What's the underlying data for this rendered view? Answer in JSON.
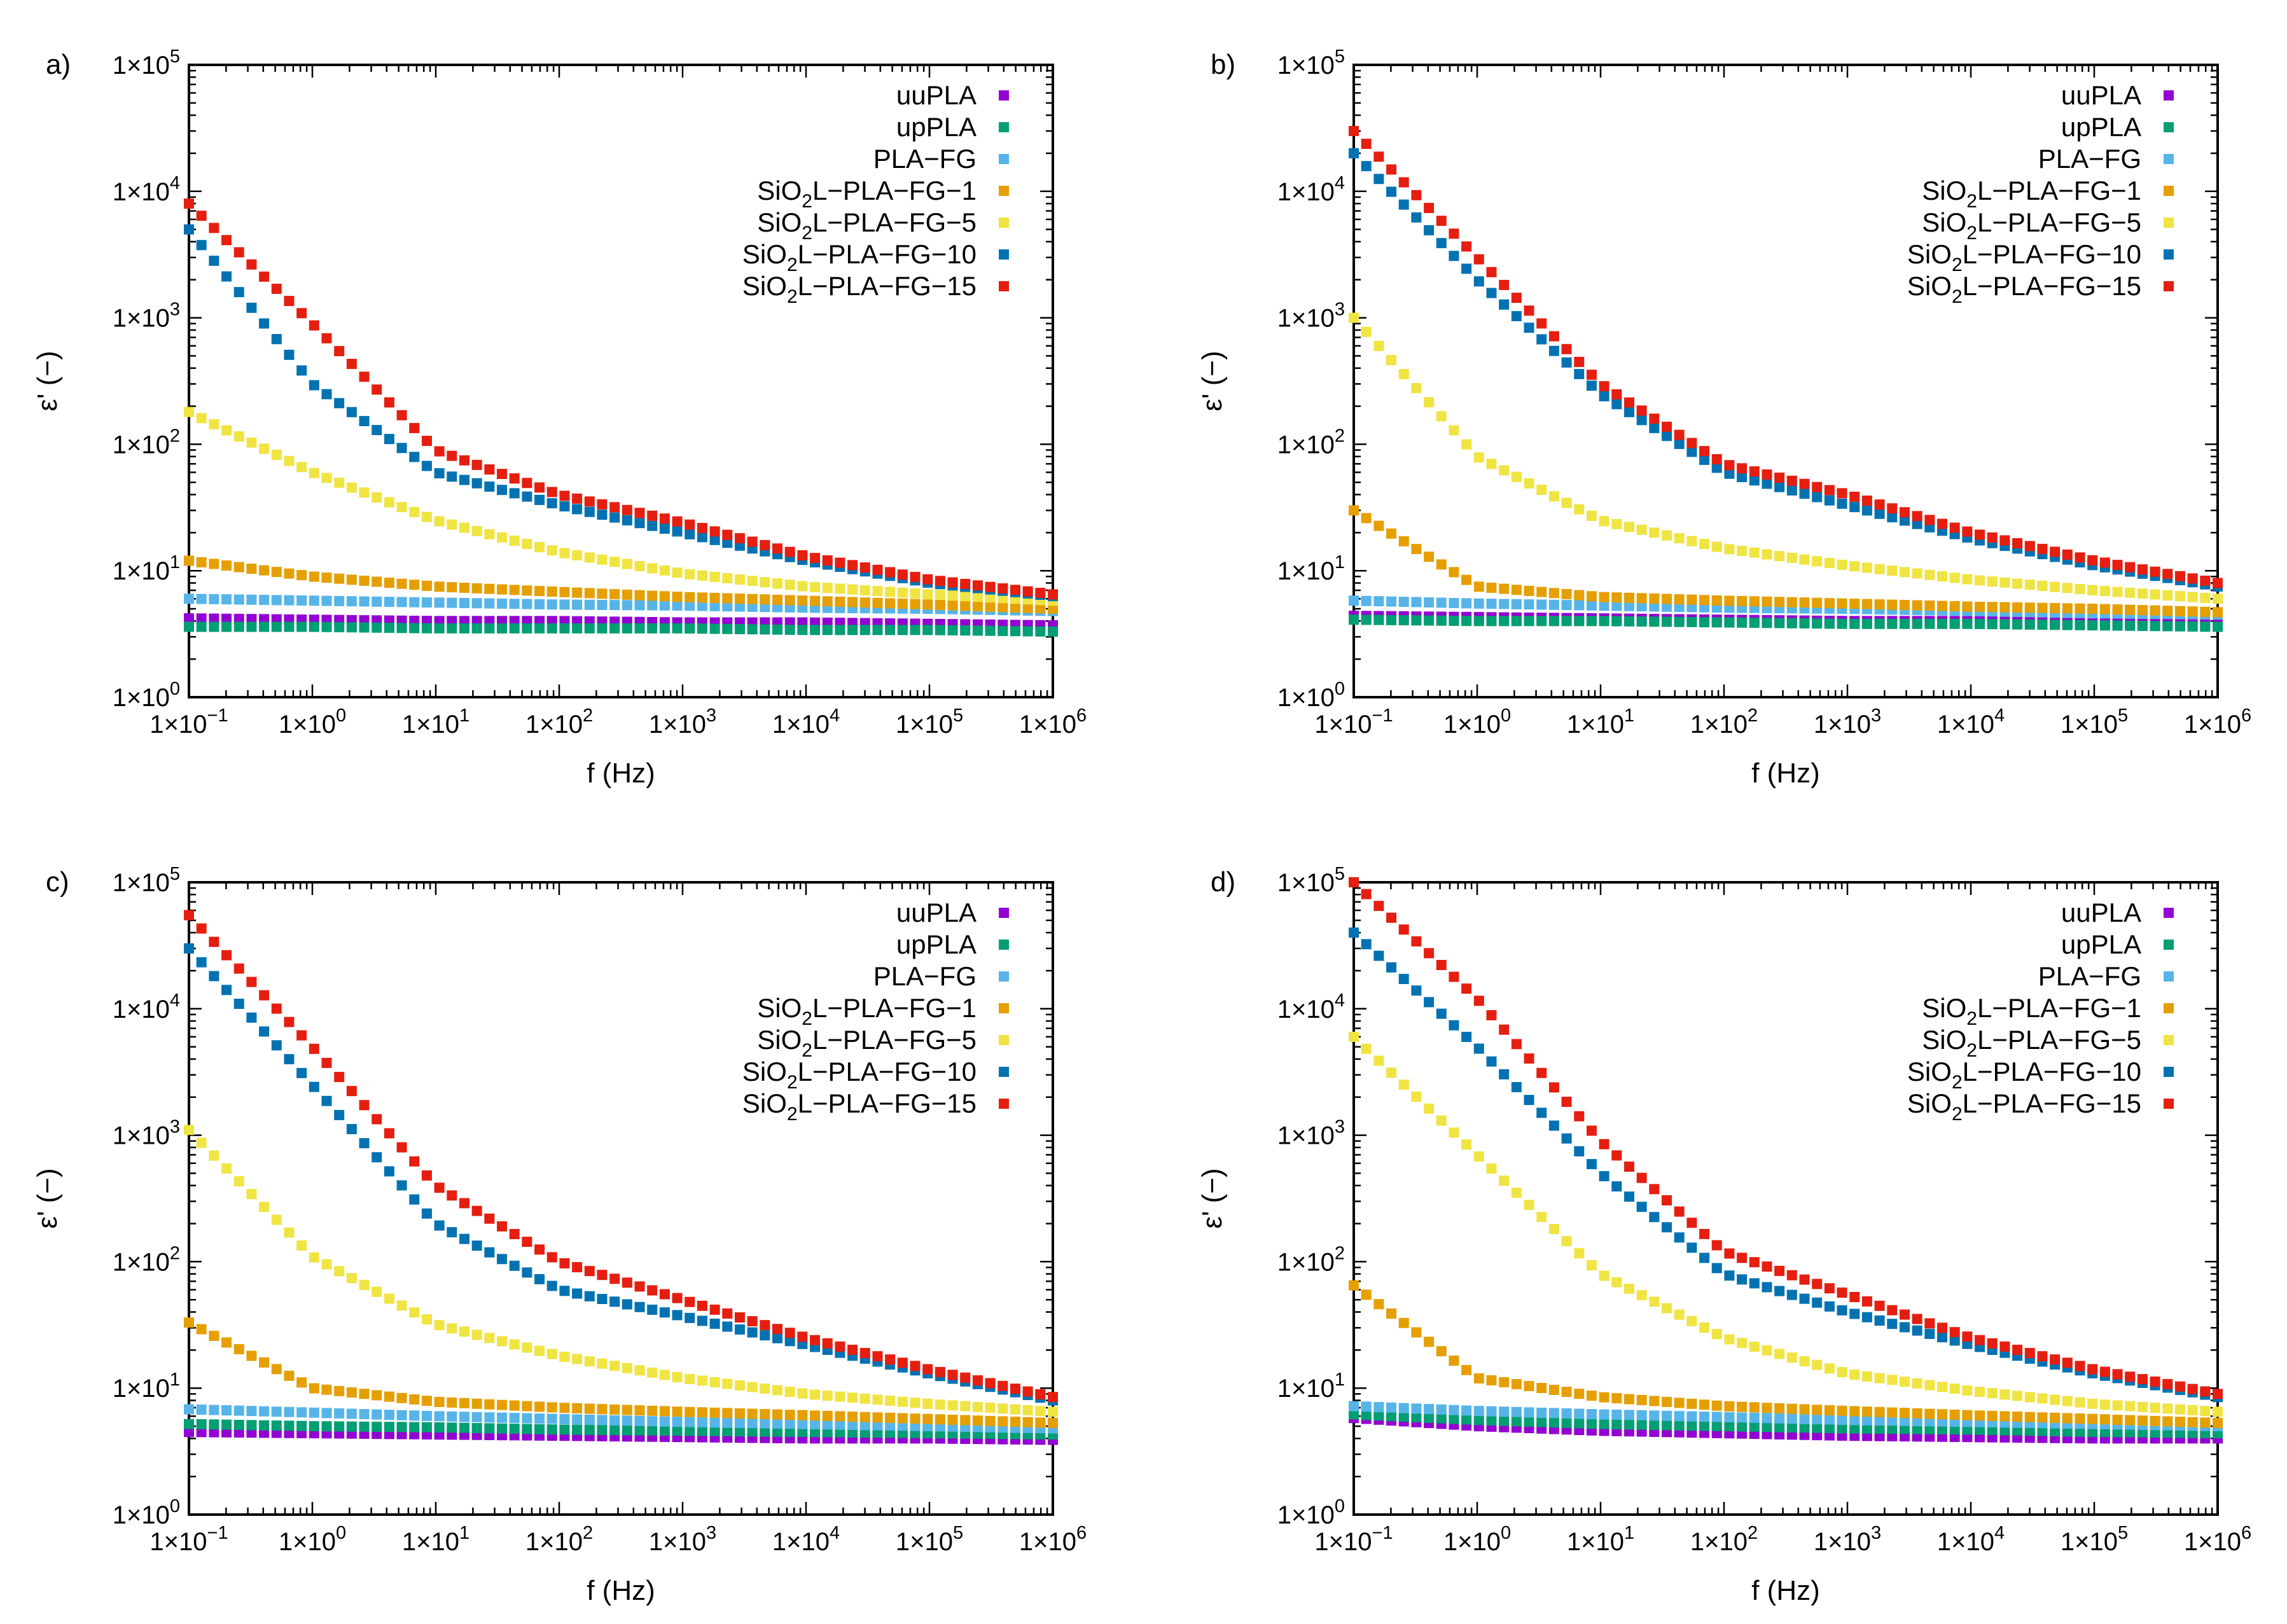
{
  "figure": {
    "panels_layout": "2x2 grid",
    "shared": {
      "xlabel": "f (Hz)",
      "ylabel": "ε' (−)",
      "x_scale": "log",
      "y_scale": "log",
      "xlim": [
        0.1,
        1000000
      ],
      "ylim": [
        1,
        100000
      ],
      "x_ticks": [
        {
          "mant": "1×10",
          "exp": "−1"
        },
        {
          "mant": "1×10",
          "exp": "0"
        },
        {
          "mant": "1×10",
          "exp": "1"
        },
        {
          "mant": "1×10",
          "exp": "2"
        },
        {
          "mant": "1×10",
          "exp": "3"
        },
        {
          "mant": "1×10",
          "exp": "4"
        },
        {
          "mant": "1×10",
          "exp": "5"
        },
        {
          "mant": "1×10",
          "exp": "6"
        }
      ],
      "y_ticks": [
        {
          "mant": "1×10",
          "exp": "0"
        },
        {
          "mant": "1×10",
          "exp": "1"
        },
        {
          "mant": "1×10",
          "exp": "2"
        },
        {
          "mant": "1×10",
          "exp": "3"
        },
        {
          "mant": "1×10",
          "exp": "4"
        },
        {
          "mant": "1×10",
          "exp": "5"
        }
      ],
      "legend_position": "top-right",
      "series_styles": [
        {
          "name": "uuPLA",
          "label": [
            "uuPLA"
          ],
          "color": "#9400d3"
        },
        {
          "name": "upPLA",
          "label": [
            "upPLA"
          ],
          "color": "#009e73"
        },
        {
          "name": "PLA-FG",
          "label": [
            "PLA−FG"
          ],
          "color": "#56b4e9"
        },
        {
          "name": "SiO2L-PLA-FG-1",
          "label": [
            "SiO",
            "2",
            "L−PLA−FG−1"
          ],
          "color": "#e69f00"
        },
        {
          "name": "SiO2L-PLA-FG-5",
          "label": [
            "SiO",
            "2",
            "L−PLA−FG−5"
          ],
          "color": "#f0e442"
        },
        {
          "name": "SiO2L-PLA-FG-10",
          "label": [
            "SiO",
            "2",
            "L−PLA−FG−10"
          ],
          "color": "#0072b2"
        },
        {
          "name": "SiO2L-PLA-FG-15",
          "label": [
            "SiO",
            "2",
            "L−PLA−FG−15"
          ],
          "color": "#e51e10"
        }
      ]
    }
  },
  "chart_data": [
    {
      "panel_label": "a)",
      "type": "scatter",
      "title": "",
      "xlabel": "f (Hz)",
      "ylabel": "ε' (−)",
      "x": [
        0.1,
        1,
        10,
        100,
        1000,
        10000,
        100000,
        1000000
      ],
      "series": [
        {
          "name": "uuPLA",
          "values": [
            4.2,
            4.1,
            4.0,
            4.0,
            3.9,
            3.9,
            3.8,
            3.7
          ]
        },
        {
          "name": "upPLA",
          "values": [
            3.6,
            3.6,
            3.5,
            3.5,
            3.5,
            3.4,
            3.4,
            3.3
          ]
        },
        {
          "name": "PLA-FG",
          "values": [
            6.0,
            5.8,
            5.6,
            5.4,
            5.3,
            5.1,
            5.0,
            4.8
          ]
        },
        {
          "name": "SiO2L-PLA-FG-1",
          "values": [
            12,
            9.0,
            7.5,
            6.8,
            6.2,
            5.8,
            5.4,
            5.0
          ]
        },
        {
          "name": "SiO2L-PLA-FG-5",
          "values": [
            180,
            60,
            25,
            14,
            9.5,
            7.5,
            6.5,
            5.8
          ]
        },
        {
          "name": "SiO2L-PLA-FG-10",
          "values": [
            5000,
            300,
            60,
            33,
            20,
            12,
            8.0,
            6.3
          ]
        },
        {
          "name": "SiO2L-PLA-FG-15",
          "values": [
            8000,
            900,
            90,
            40,
            24,
            13,
            8.5,
            6.5
          ]
        }
      ]
    },
    {
      "panel_label": "b)",
      "type": "scatter",
      "title": "",
      "xlabel": "f (Hz)",
      "ylabel": "ε' (−)",
      "x": [
        0.1,
        1,
        10,
        100,
        1000,
        10000,
        100000,
        1000000
      ],
      "series": [
        {
          "name": "uuPLA",
          "values": [
            4.4,
            4.3,
            4.2,
            4.1,
            4.0,
            4.0,
            3.9,
            3.8
          ]
        },
        {
          "name": "upPLA",
          "values": [
            4.1,
            4.0,
            4.0,
            3.9,
            3.8,
            3.8,
            3.7,
            3.6
          ]
        },
        {
          "name": "PLA-FG",
          "values": [
            5.8,
            5.5,
            5.3,
            5.1,
            5.0,
            4.8,
            4.6,
            4.5
          ]
        },
        {
          "name": "SiO2L-PLA-FG-1",
          "values": [
            30,
            7.5,
            6.2,
            5.8,
            5.5,
            5.2,
            5.0,
            4.7
          ]
        },
        {
          "name": "SiO2L-PLA-FG-5",
          "values": [
            1000,
            80,
            25,
            15,
            11,
            8.5,
            7.0,
            6.0
          ]
        },
        {
          "name": "SiO2L-PLA-FG-10",
          "values": [
            20000,
            2000,
            250,
            60,
            33,
            18,
            11,
            7.5
          ]
        },
        {
          "name": "SiO2L-PLA-FG-15",
          "values": [
            30000,
            3000,
            300,
            70,
            40,
            20,
            12,
            8.0
          ]
        }
      ]
    },
    {
      "panel_label": "c)",
      "type": "scatter",
      "title": "",
      "xlabel": "f (Hz)",
      "ylabel": "ε' (−)",
      "x": [
        0.1,
        1,
        10,
        100,
        1000,
        10000,
        100000,
        1000000
      ],
      "series": [
        {
          "name": "uuPLA",
          "values": [
            4.5,
            4.4,
            4.3,
            4.2,
            4.1,
            4.0,
            4.0,
            3.9
          ]
        },
        {
          "name": "upPLA",
          "values": [
            5.2,
            5.0,
            4.9,
            4.7,
            4.6,
            4.5,
            4.4,
            4.3
          ]
        },
        {
          "name": "PLA-FG",
          "values": [
            6.8,
            6.4,
            6.0,
            5.7,
            5.4,
            5.2,
            5.0,
            4.8
          ]
        },
        {
          "name": "SiO2L-PLA-FG-1",
          "values": [
            33,
            10,
            7.8,
            7.0,
            6.5,
            6.1,
            5.7,
            5.3
          ]
        },
        {
          "name": "SiO2L-PLA-FG-5",
          "values": [
            1100,
            110,
            32,
            18,
            12,
            9.0,
            7.5,
            6.5
          ]
        },
        {
          "name": "SiO2L-PLA-FG-10",
          "values": [
            30000,
            2500,
            200,
            60,
            37,
            22,
            13,
            8.0
          ]
        },
        {
          "name": "SiO2L-PLA-FG-15",
          "values": [
            55000,
            5000,
            400,
            100,
            50,
            25,
            14,
            8.5
          ]
        }
      ]
    },
    {
      "panel_label": "d)",
      "type": "scatter",
      "title": "",
      "xlabel": "f (Hz)",
      "ylabel": "ε' (−)",
      "x": [
        0.1,
        1,
        10,
        100,
        1000,
        10000,
        100000,
        1000000
      ],
      "series": [
        {
          "name": "uuPLA",
          "values": [
            5.8,
            5.0,
            4.6,
            4.4,
            4.2,
            4.1,
            4.0,
            4.0
          ]
        },
        {
          "name": "upPLA",
          "values": [
            6.2,
            5.6,
            5.2,
            5.0,
            4.8,
            4.7,
            4.5,
            4.4
          ]
        },
        {
          "name": "PLA-FG",
          "values": [
            7.2,
            6.6,
            6.2,
            5.9,
            5.6,
            5.4,
            5.2,
            5.0
          ]
        },
        {
          "name": "SiO2L-PLA-FG-1",
          "values": [
            65,
            12,
            8.5,
            7.2,
            6.6,
            6.1,
            5.7,
            5.3
          ]
        },
        {
          "name": "SiO2L-PLA-FG-5",
          "values": [
            6000,
            700,
            80,
            25,
            13,
            9.5,
            7.5,
            6.5
          ]
        },
        {
          "name": "SiO2L-PLA-FG-10",
          "values": [
            40000,
            5000,
            500,
            80,
            40,
            22,
            13,
            8.5
          ]
        },
        {
          "name": "SiO2L-PLA-FG-15",
          "values": [
            100000,
            12000,
            900,
            120,
            55,
            25,
            14,
            9.0
          ]
        }
      ]
    }
  ]
}
